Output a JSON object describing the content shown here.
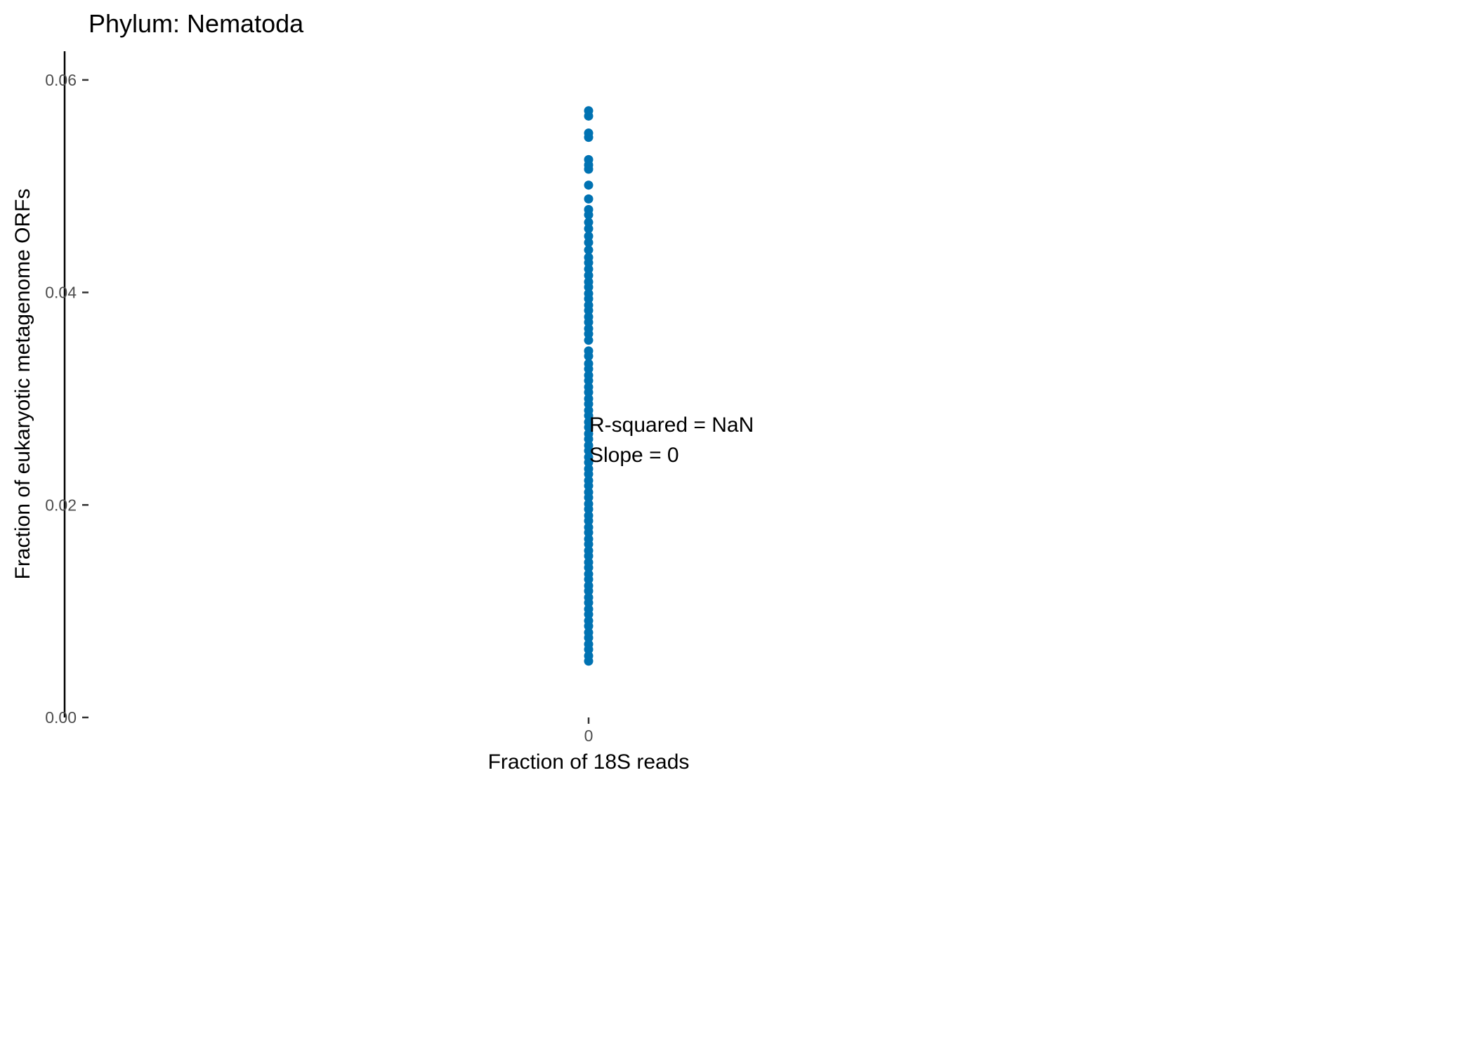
{
  "chart_data": {
    "type": "scatter",
    "title": "Phylum:  Nematoda",
    "xlabel": "Fraction of 18S reads",
    "ylabel": "Fraction of eukaryotic metagenome ORFs",
    "x_tick_labels": [
      "0"
    ],
    "y_tick_labels": [
      "0.00",
      "0.02",
      "0.04",
      "0.06"
    ],
    "y_ticks": [
      0.0,
      0.02,
      0.04,
      0.06
    ],
    "ylim": [
      0.0,
      0.0627
    ],
    "grid": false,
    "point_color": "#0072b2",
    "annotations": [
      "R-squared =  NaN",
      "Slope =  0"
    ],
    "points": [
      {
        "x": 0,
        "y": 0.0571
      },
      {
        "x": 0,
        "y": 0.0566
      },
      {
        "x": 0,
        "y": 0.055
      },
      {
        "x": 0,
        "y": 0.0546
      },
      {
        "x": 0,
        "y": 0.0525
      },
      {
        "x": 0,
        "y": 0.052
      },
      {
        "x": 0,
        "y": 0.0516
      },
      {
        "x": 0,
        "y": 0.0501
      },
      {
        "x": 0,
        "y": 0.0488
      },
      {
        "x": 0,
        "y": 0.0478
      },
      {
        "x": 0,
        "y": 0.0473
      },
      {
        "x": 0,
        "y": 0.0466
      },
      {
        "x": 0,
        "y": 0.046
      },
      {
        "x": 0,
        "y": 0.0453
      },
      {
        "x": 0,
        "y": 0.0447
      },
      {
        "x": 0,
        "y": 0.044
      },
      {
        "x": 0,
        "y": 0.0433
      },
      {
        "x": 0,
        "y": 0.0428
      },
      {
        "x": 0,
        "y": 0.0422
      },
      {
        "x": 0,
        "y": 0.0416
      },
      {
        "x": 0,
        "y": 0.041
      },
      {
        "x": 0,
        "y": 0.0405
      },
      {
        "x": 0,
        "y": 0.0399
      },
      {
        "x": 0,
        "y": 0.0394
      },
      {
        "x": 0,
        "y": 0.0388
      },
      {
        "x": 0,
        "y": 0.0383
      },
      {
        "x": 0,
        "y": 0.0377
      },
      {
        "x": 0,
        "y": 0.0372
      },
      {
        "x": 0,
        "y": 0.0366
      },
      {
        "x": 0,
        "y": 0.0361
      },
      {
        "x": 0,
        "y": 0.0355
      },
      {
        "x": 0,
        "y": 0.0345
      },
      {
        "x": 0,
        "y": 0.034
      },
      {
        "x": 0,
        "y": 0.0333
      },
      {
        "x": 0,
        "y": 0.0328
      },
      {
        "x": 0,
        "y": 0.0322
      },
      {
        "x": 0,
        "y": 0.0317
      },
      {
        "x": 0,
        "y": 0.0311
      },
      {
        "x": 0,
        "y": 0.0306
      },
      {
        "x": 0,
        "y": 0.03
      },
      {
        "x": 0,
        "y": 0.0295
      },
      {
        "x": 0,
        "y": 0.0289
      },
      {
        "x": 0,
        "y": 0.0284
      },
      {
        "x": 0,
        "y": 0.0278
      },
      {
        "x": 0,
        "y": 0.0273
      },
      {
        "x": 0,
        "y": 0.0267
      },
      {
        "x": 0,
        "y": 0.0262
      },
      {
        "x": 0,
        "y": 0.0256
      },
      {
        "x": 0,
        "y": 0.0251
      },
      {
        "x": 0,
        "y": 0.0245
      },
      {
        "x": 0,
        "y": 0.024
      },
      {
        "x": 0,
        "y": 0.0234
      },
      {
        "x": 0,
        "y": 0.0229
      },
      {
        "x": 0,
        "y": 0.0223
      },
      {
        "x": 0,
        "y": 0.0218
      },
      {
        "x": 0,
        "y": 0.0212
      },
      {
        "x": 0,
        "y": 0.0207
      },
      {
        "x": 0,
        "y": 0.0201
      },
      {
        "x": 0,
        "y": 0.0196
      },
      {
        "x": 0,
        "y": 0.019
      },
      {
        "x": 0,
        "y": 0.0185
      },
      {
        "x": 0,
        "y": 0.0179
      },
      {
        "x": 0,
        "y": 0.0174
      },
      {
        "x": 0,
        "y": 0.0168
      },
      {
        "x": 0,
        "y": 0.0163
      },
      {
        "x": 0,
        "y": 0.0157
      },
      {
        "x": 0,
        "y": 0.0152
      },
      {
        "x": 0,
        "y": 0.0146
      },
      {
        "x": 0,
        "y": 0.0141
      },
      {
        "x": 0,
        "y": 0.0135
      },
      {
        "x": 0,
        "y": 0.013
      },
      {
        "x": 0,
        "y": 0.0124
      },
      {
        "x": 0,
        "y": 0.0119
      },
      {
        "x": 0,
        "y": 0.0113
      },
      {
        "x": 0,
        "y": 0.0108
      },
      {
        "x": 0,
        "y": 0.0102
      },
      {
        "x": 0,
        "y": 0.0097
      },
      {
        "x": 0,
        "y": 0.0091
      },
      {
        "x": 0,
        "y": 0.0086
      },
      {
        "x": 0,
        "y": 0.008
      },
      {
        "x": 0,
        "y": 0.0075
      },
      {
        "x": 0,
        "y": 0.0069
      },
      {
        "x": 0,
        "y": 0.0064
      },
      {
        "x": 0,
        "y": 0.0058
      },
      {
        "x": 0,
        "y": 0.0053
      }
    ]
  }
}
